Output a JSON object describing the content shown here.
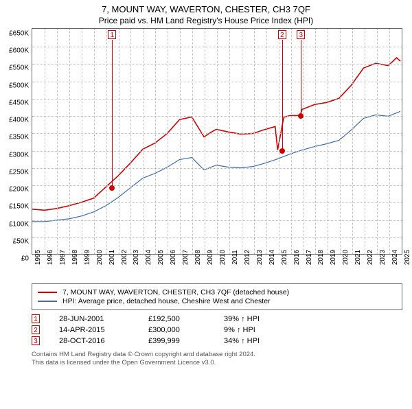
{
  "title": "7, MOUNT WAY, WAVERTON, CHESTER, CH3 7QF",
  "subtitle": "Price paid vs. HM Land Registry's House Price Index (HPI)",
  "chart": {
    "type": "line",
    "background_color": "#ffffff",
    "grid_color": "#bbbbbb",
    "border_color": "#666666",
    "ylim": [
      0,
      650000
    ],
    "ytick_step": 50000,
    "ytick_labels": [
      "£0",
      "£50K",
      "£100K",
      "£150K",
      "£200K",
      "£250K",
      "£300K",
      "£350K",
      "£400K",
      "£450K",
      "£500K",
      "£550K",
      "£600K",
      "£650K"
    ],
    "x_years": [
      1995,
      1996,
      1997,
      1998,
      1999,
      2000,
      2001,
      2002,
      2003,
      2004,
      2005,
      2006,
      2007,
      2008,
      2009,
      2010,
      2011,
      2012,
      2013,
      2014,
      2015,
      2016,
      2017,
      2018,
      2019,
      2020,
      2021,
      2022,
      2023,
      2024,
      2025
    ],
    "series": [
      {
        "name": "property",
        "label": "7, MOUNT WAY, WAVERTON, CHESTER, CH3 7QF (detached house)",
        "color": "#d40000",
        "line_width": 1.6,
        "data": [
          [
            1995,
            128000
          ],
          [
            1996,
            125000
          ],
          [
            1997,
            130000
          ],
          [
            1998,
            138000
          ],
          [
            1999,
            148000
          ],
          [
            2000,
            160000
          ],
          [
            2001,
            192500
          ],
          [
            2002,
            225000
          ],
          [
            2003,
            262000
          ],
          [
            2004,
            302000
          ],
          [
            2005,
            320000
          ],
          [
            2006,
            348000
          ],
          [
            2007,
            388000
          ],
          [
            2008,
            396000
          ],
          [
            2009,
            338000
          ],
          [
            2009.5,
            350000
          ],
          [
            2010,
            360000
          ],
          [
            2011,
            352000
          ],
          [
            2012,
            346000
          ],
          [
            2013,
            348000
          ],
          [
            2014,
            360000
          ],
          [
            2014.8,
            368000
          ],
          [
            2015,
            300000
          ],
          [
            2015.5,
            395000
          ],
          [
            2016,
            400000
          ],
          [
            2016.82,
            399999
          ],
          [
            2017,
            418000
          ],
          [
            2018,
            432000
          ],
          [
            2019,
            438000
          ],
          [
            2020,
            450000
          ],
          [
            2021,
            488000
          ],
          [
            2022,
            538000
          ],
          [
            2023,
            552000
          ],
          [
            2024,
            545000
          ],
          [
            2024.7,
            568000
          ],
          [
            2025,
            558000
          ]
        ]
      },
      {
        "name": "hpi",
        "label": "HPI: Average price, detached house, Cheshire West and Chester",
        "color": "#3b6db3",
        "line_width": 1.2,
        "data": [
          [
            1995,
            92000
          ],
          [
            1996,
            92000
          ],
          [
            1997,
            96000
          ],
          [
            1998,
            100000
          ],
          [
            1999,
            108000
          ],
          [
            2000,
            120000
          ],
          [
            2001,
            138000
          ],
          [
            2002,
            162000
          ],
          [
            2003,
            190000
          ],
          [
            2004,
            218000
          ],
          [
            2005,
            232000
          ],
          [
            2006,
            250000
          ],
          [
            2007,
            272000
          ],
          [
            2008,
            278000
          ],
          [
            2009,
            242000
          ],
          [
            2010,
            256000
          ],
          [
            2011,
            250000
          ],
          [
            2012,
            248000
          ],
          [
            2013,
            252000
          ],
          [
            2014,
            262000
          ],
          [
            2015,
            274000
          ],
          [
            2016,
            288000
          ],
          [
            2017,
            300000
          ],
          [
            2018,
            310000
          ],
          [
            2019,
            318000
          ],
          [
            2020,
            328000
          ],
          [
            2021,
            358000
          ],
          [
            2022,
            392000
          ],
          [
            2023,
            402000
          ],
          [
            2024,
            398000
          ],
          [
            2025,
            412000
          ]
        ]
      }
    ],
    "sale_markers": [
      {
        "n": "1",
        "year": 2001.49,
        "price": 192500,
        "color": "#d40000"
      },
      {
        "n": "2",
        "year": 2015.29,
        "price": 300000,
        "color": "#d40000"
      },
      {
        "n": "3",
        "year": 2016.82,
        "price": 399999,
        "color": "#d40000"
      }
    ]
  },
  "legend": {
    "rows": [
      {
        "color": "#d40000",
        "label": "7, MOUNT WAY, WAVERTON, CHESTER, CH3 7QF (detached house)"
      },
      {
        "color": "#3b6db3",
        "label": "HPI: Average price, detached house, Cheshire West and Chester"
      }
    ]
  },
  "sales": [
    {
      "n": "1",
      "date": "28-JUN-2001",
      "price": "£192,500",
      "delta": "39% ↑ HPI",
      "color": "#d40000"
    },
    {
      "n": "2",
      "date": "14-APR-2015",
      "price": "£300,000",
      "delta": "9% ↑ HPI",
      "color": "#d40000"
    },
    {
      "n": "3",
      "date": "28-OCT-2016",
      "price": "£399,999",
      "delta": "34% ↑ HPI",
      "color": "#d40000"
    }
  ],
  "footer": {
    "line1": "Contains HM Land Registry data © Crown copyright and database right 2024.",
    "line2": "This data is licensed under the Open Government Licence v3.0."
  }
}
